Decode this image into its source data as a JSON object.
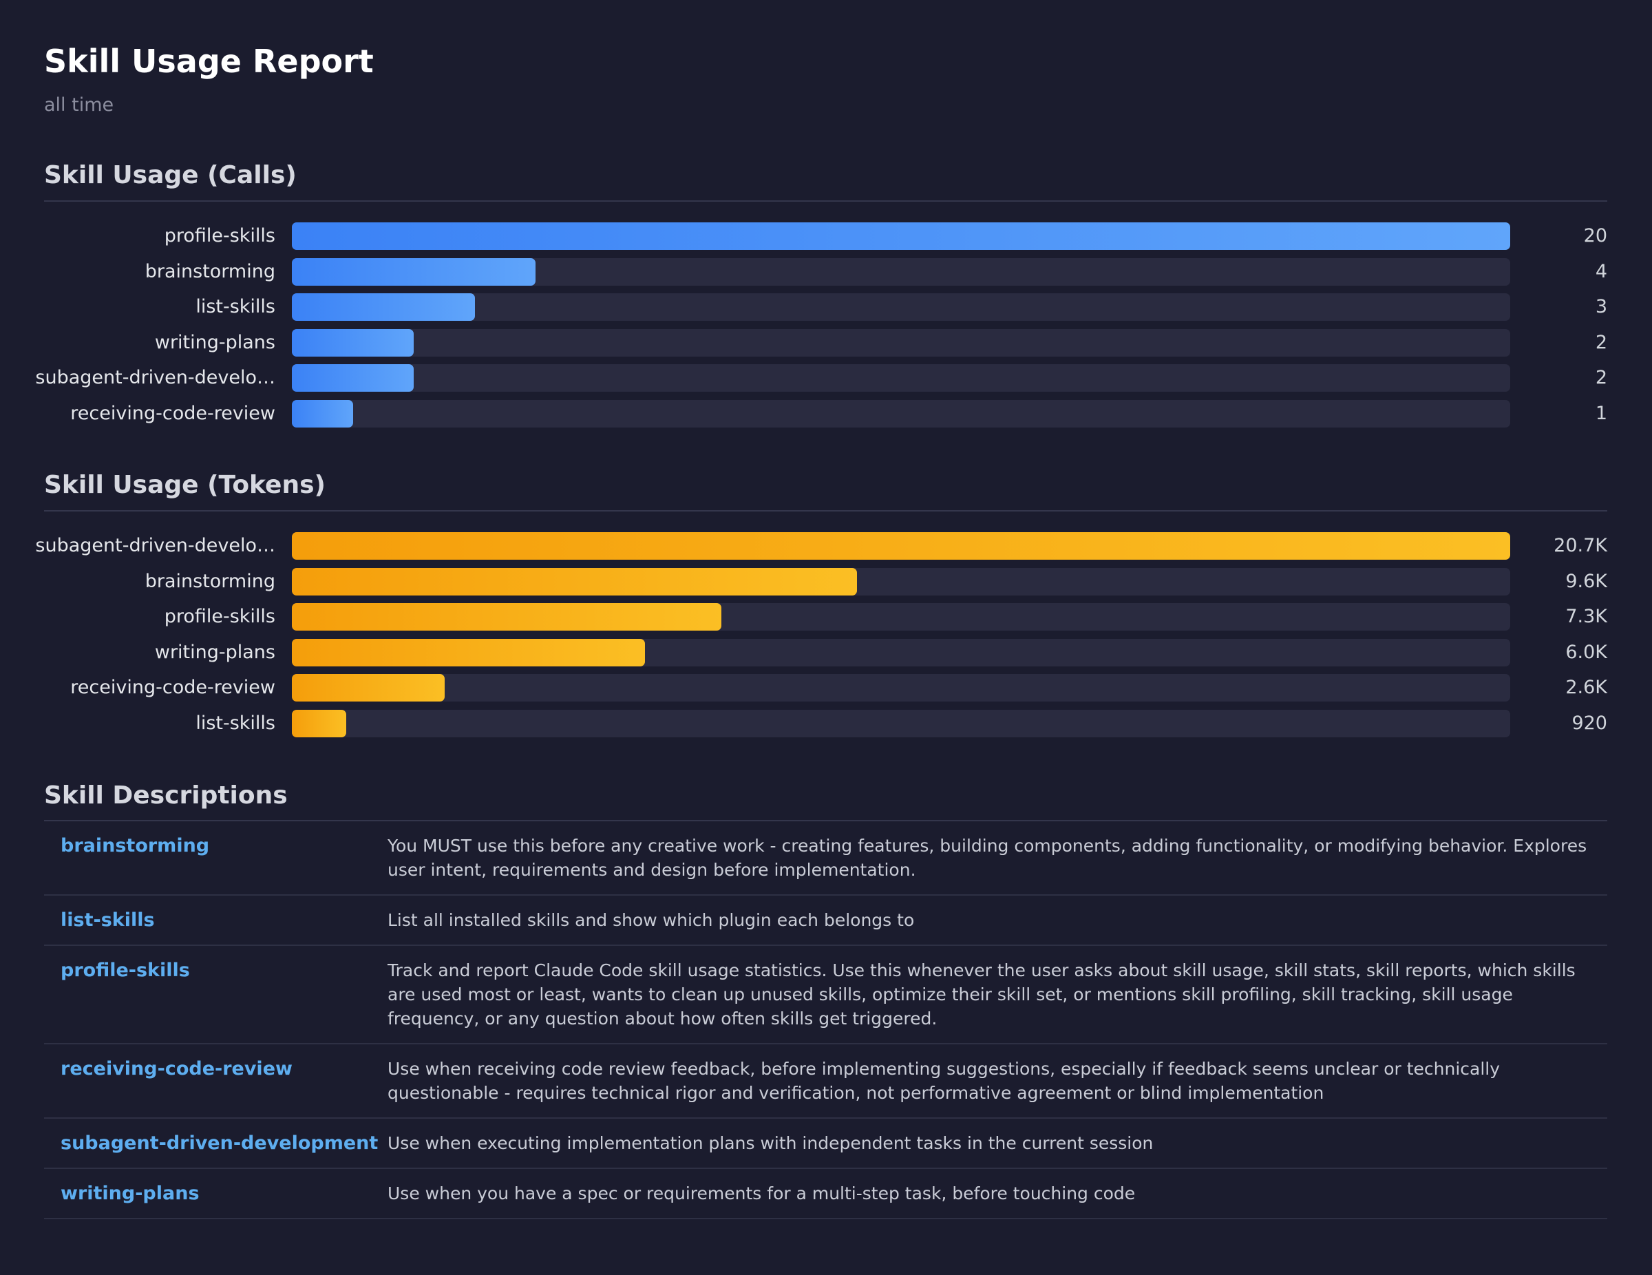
{
  "header": {
    "title": "Skill Usage Report",
    "subtitle": "all time"
  },
  "chart_data": [
    {
      "type": "hbar",
      "title": "Skill Usage (Calls)",
      "categories": [
        "profile-skills",
        "brainstorming",
        "list-skills",
        "writing-plans",
        "subagent-driven-develo…",
        "receiving-code-review"
      ],
      "values": [
        20,
        4,
        3,
        2,
        2,
        1
      ],
      "color": "#3b82f6",
      "color_end": "#60a5fa"
    },
    {
      "type": "hbar",
      "title": "Skill Usage (Tokens)",
      "categories": [
        "subagent-driven-develo…",
        "brainstorming",
        "profile-skills",
        "writing-plans",
        "receiving-code-review",
        "list-skills"
      ],
      "values": [
        20700,
        9600,
        7300,
        6000,
        2600,
        920
      ],
      "value_labels": [
        "20.7K",
        "9.6K",
        "7.3K",
        "6.0K",
        "2.6K",
        "920"
      ],
      "color": "#f59e0b",
      "color_end": "#fbbf24"
    }
  ],
  "descriptions": {
    "title": "Skill Descriptions",
    "rows": [
      {
        "name": "brainstorming",
        "description": "You MUST use this before any creative work - creating features, building components, adding functionality, or modifying behavior. Explores user intent, requirements and design before implementation."
      },
      {
        "name": "list-skills",
        "description": "List all installed skills and show which plugin each belongs to"
      },
      {
        "name": "profile-skills",
        "description": "Track and report Claude Code skill usage statistics. Use this whenever the user asks about skill usage, skill stats, skill reports, which skills are used most or least, wants to clean up unused skills, optimize their skill set, or mentions skill profiling, skill tracking, skill usage frequency, or any question about how often skills get triggered."
      },
      {
        "name": "receiving-code-review",
        "description": "Use when receiving code review feedback, before implementing suggestions, especially if feedback seems unclear or technically questionable - requires technical rigor and verification, not performative agreement or blind implementation"
      },
      {
        "name": "subagent-driven-development",
        "description": "Use when executing implementation plans with independent tasks in the current session"
      },
      {
        "name": "writing-plans",
        "description": "Use when you have a spec or requirements for a multi-step task, before touching code"
      }
    ]
  }
}
